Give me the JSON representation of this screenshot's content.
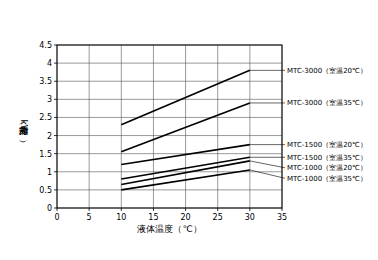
{
  "chart_data": {
    "type": "line",
    "x_label": "液体温度（℃）",
    "y_label": "冷却能力（kW）",
    "x": [
      10,
      30
    ],
    "series": [
      {
        "name": "MTC-3000（室温20℃）",
        "color": "#000000",
        "values": [
          2.3,
          3.8
        ]
      },
      {
        "name": "MTC-3000（室温35℃）",
        "color": "#000000",
        "values": [
          1.55,
          2.9
        ]
      },
      {
        "name": "MTC-1500（室温20℃）",
        "color": "#000000",
        "values": [
          1.2,
          1.75
        ]
      },
      {
        "name": "MTC-1500（室温35℃）",
        "color": "#000000",
        "values": [
          0.8,
          1.4
        ]
      },
      {
        "name": "MTC-1000（室温20℃）",
        "color": "#000000",
        "values": [
          0.65,
          1.3
        ]
      },
      {
        "name": "MTC-1000（室温35℃）",
        "color": "#000000",
        "values": [
          0.5,
          1.05
        ]
      }
    ],
    "xlim": [
      0,
      35
    ],
    "xticks": [
      0,
      5,
      10,
      15,
      20,
      25,
      30,
      35
    ],
    "ylim": [
      0,
      4.5
    ],
    "yticks": [
      0,
      0.5,
      1,
      1.5,
      2,
      2.5,
      3,
      3.5,
      4,
      4.5
    ],
    "grid": true
  }
}
